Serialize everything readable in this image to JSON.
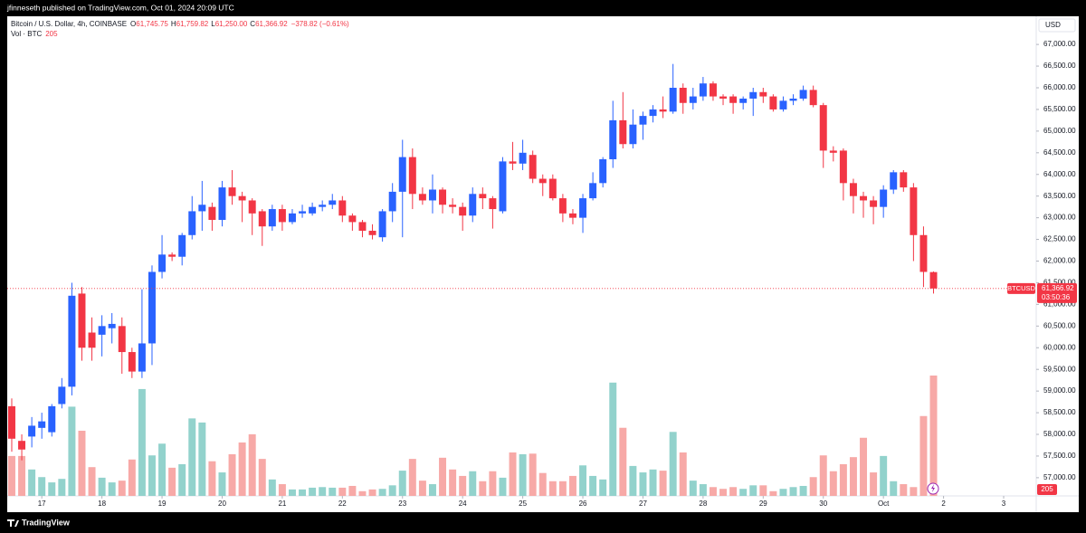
{
  "header": {
    "publisher": "jfinneseth published on TradingView.com, Oct 01, 2024 20:09 UTC"
  },
  "footer": {
    "brand": "TradingView"
  },
  "chart_data": {
    "type": "candlestick",
    "title": "Bitcoin / U.S. Dollar, 4h, COINBASE",
    "ohlc_legend": [
      {
        "label": "O",
        "value": "61,745.75"
      },
      {
        "label": "H",
        "value": "61,759.82"
      },
      {
        "label": "L",
        "value": "61,250.00"
      },
      {
        "label": "C",
        "value": "61,366.92"
      }
    ],
    "change": "−378.82 (−0.61%)",
    "volume_legend": {
      "label": "Vol · BTC",
      "value": "205"
    },
    "currency": "USD",
    "symbol": "BTCUSD",
    "last_price_label": "61,366.92",
    "countdown": "03:50:36",
    "up_color": "#2962ff",
    "down_color": "#f23645",
    "volume_up_color": "#92d2cc",
    "volume_down_color": "#f7a9a7",
    "open": [
      58650,
      57850,
      57950,
      58150,
      58050,
      58700,
      59100,
      61250,
      60350,
      60300,
      60450,
      60500,
      59900,
      59450,
      60100,
      61750,
      62150,
      62100,
      62600,
      63150,
      63250,
      62950,
      63700,
      63500,
      63400,
      63150,
      62800,
      63200,
      62900,
      63100,
      63100,
      63250,
      63300,
      63400,
      63050,
      62900,
      62700,
      62550,
      63150,
      63600,
      64400,
      63550,
      63400,
      63650,
      63300,
      63250,
      63050,
      63550,
      63450,
      63150,
      64300,
      64250,
      64450,
      63900,
      63900,
      63450,
      63100,
      63000,
      63450,
      63800,
      64350,
      65250,
      64700,
      65150,
      65350,
      65500,
      65450,
      66000,
      65650,
      65800,
      66100,
      65800,
      65800,
      65650,
      65750,
      65900,
      65800,
      65500,
      65700,
      65750,
      65950,
      65600,
      64550,
      64550,
      63800,
      63500,
      63400,
      63250,
      63650,
      64050,
      63700,
      62600,
      61745.75
    ],
    "high": [
      58830,
      58000,
      58400,
      58500,
      58700,
      59300,
      61500,
      61400,
      60700,
      60750,
      60800,
      60700,
      60000,
      61350,
      61900,
      62600,
      62200,
      62650,
      63500,
      63850,
      63350,
      63850,
      64100,
      63600,
      63450,
      63200,
      63300,
      63300,
      63200,
      63300,
      63350,
      63400,
      63550,
      63500,
      63100,
      62950,
      62850,
      63200,
      63800,
      64800,
      64600,
      63700,
      64000,
      63700,
      63450,
      63350,
      63700,
      63700,
      63500,
      64400,
      64750,
      64800,
      64550,
      64000,
      64000,
      63550,
      63200,
      63550,
      64050,
      64400,
      65700,
      65900,
      65500,
      65450,
      65600,
      65800,
      66550,
      66100,
      66000,
      66250,
      66150,
      65850,
      65850,
      65800,
      66000,
      66000,
      65850,
      65800,
      65850,
      66050,
      66050,
      65650,
      64650,
      64600,
      63900,
      63600,
      63500,
      63750,
      64100,
      64100,
      63800,
      62800,
      61759.82
    ],
    "low": [
      57600,
      57400,
      57700,
      57900,
      57950,
      58600,
      58900,
      59700,
      59700,
      59800,
      60100,
      59400,
      59300,
      59300,
      59600,
      61600,
      62000,
      61900,
      62500,
      62700,
      62700,
      62800,
      63300,
      62900,
      62600,
      62350,
      62700,
      62700,
      62850,
      63000,
      63050,
      63150,
      63200,
      62900,
      62700,
      62550,
      62500,
      62450,
      62900,
      62550,
      63200,
      63300,
      63100,
      63100,
      63100,
      62700,
      62900,
      63200,
      62750,
      63100,
      64100,
      64100,
      63800,
      63500,
      63400,
      62900,
      62850,
      62650,
      63400,
      63700,
      64150,
      64600,
      64600,
      64800,
      65200,
      65300,
      65400,
      65400,
      65500,
      65700,
      65700,
      65600,
      65400,
      65500,
      65350,
      65650,
      65450,
      65450,
      65600,
      65700,
      65550,
      64150,
      64300,
      63400,
      63100,
      63000,
      62850,
      63000,
      63550,
      63600,
      62000,
      61400,
      61250
    ],
    "close": [
      57900,
      57650,
      58200,
      58300,
      58650,
      59100,
      61200,
      60000,
      60000,
      60500,
      60550,
      59900,
      59450,
      60100,
      61750,
      62150,
      62100,
      62600,
      63150,
      63300,
      62950,
      63700,
      63500,
      63400,
      63100,
      62800,
      63200,
      62900,
      63100,
      63150,
      63250,
      63300,
      63400,
      63050,
      62900,
      62700,
      62600,
      63150,
      63600,
      64400,
      63550,
      63400,
      63650,
      63300,
      63250,
      63050,
      63550,
      63450,
      63200,
      64300,
      64250,
      64500,
      63900,
      63800,
      63450,
      63100,
      63000,
      63450,
      63800,
      64350,
      65250,
      64700,
      65150,
      65350,
      65500,
      65450,
      66000,
      65650,
      65800,
      66100,
      65800,
      65750,
      65650,
      65750,
      65900,
      65800,
      65500,
      65700,
      65750,
      65950,
      65600,
      64550,
      64500,
      63800,
      63500,
      63400,
      63250,
      63650,
      64050,
      63700,
      62600,
      61750,
      61366.92
    ],
    "volume": [
      68,
      68,
      45,
      32,
      23,
      29,
      152,
      111,
      49,
      31,
      23,
      26,
      62,
      182,
      69,
      89,
      48,
      54,
      132,
      125,
      59,
      40,
      71,
      91,
      105,
      63,
      28,
      20,
      11,
      11,
      14,
      15,
      14,
      14,
      17,
      8,
      11,
      12,
      18,
      43,
      63,
      26,
      20,
      65,
      45,
      34,
      42,
      25,
      42,
      31,
      74,
      71,
      72,
      39,
      25,
      25,
      34,
      52,
      34,
      28,
      193,
      116,
      51,
      40,
      45,
      43,
      109,
      74,
      26,
      20,
      15,
      12,
      15,
      12,
      18,
      18,
      8,
      12,
      15,
      17,
      32,
      69,
      42,
      54,
      66,
      99,
      40,
      68,
      25,
      20,
      15,
      136,
      205
    ],
    "xlim": [
      -0.45,
      102.25
    ],
    "xticks": [
      {
        "value": 3,
        "label": "17"
      },
      {
        "value": 9,
        "label": "18"
      },
      {
        "value": 15,
        "label": "19"
      },
      {
        "value": 21,
        "label": "20"
      },
      {
        "value": 27,
        "label": "21"
      },
      {
        "value": 33,
        "label": "22"
      },
      {
        "value": 39,
        "label": "23"
      },
      {
        "value": 45,
        "label": "24"
      },
      {
        "value": 51,
        "label": "25"
      },
      {
        "value": 57,
        "label": "26"
      },
      {
        "value": 63,
        "label": "27"
      },
      {
        "value": 69,
        "label": "28"
      },
      {
        "value": 75,
        "label": "29"
      },
      {
        "value": 81,
        "label": "30"
      },
      {
        "value": 87,
        "label": "Oct"
      },
      {
        "value": 93,
        "label": "2"
      },
      {
        "value": 99,
        "label": "3"
      }
    ],
    "ylim": [
      56580,
      67650
    ],
    "yticks": [
      {
        "value": 57000,
        "label": "57,000.00"
      },
      {
        "value": 57500,
        "label": "57,500.00"
      },
      {
        "value": 58000,
        "label": "58,000.00"
      },
      {
        "value": 58500,
        "label": "58,500.00"
      },
      {
        "value": 59000,
        "label": "59,000.00"
      },
      {
        "value": 59500,
        "label": "59,500.00"
      },
      {
        "value": 60000,
        "label": "60,000.00"
      },
      {
        "value": 60500,
        "label": "60,500.00"
      },
      {
        "value": 61000,
        "label": "61,000.00"
      },
      {
        "value": 61500,
        "label": "61,500.00"
      },
      {
        "value": 62000,
        "label": "62,000.00"
      },
      {
        "value": 62500,
        "label": "62,500.00"
      },
      {
        "value": 63000,
        "label": "63,000.00"
      },
      {
        "value": 63500,
        "label": "63,500.00"
      },
      {
        "value": 64000,
        "label": "64,000.00"
      },
      {
        "value": 64500,
        "label": "64,500.00"
      },
      {
        "value": 65000,
        "label": "65,000.00"
      },
      {
        "value": 65500,
        "label": "65,500.00"
      },
      {
        "value": 66000,
        "label": "66,000.00"
      },
      {
        "value": 66500,
        "label": "66,500.00"
      },
      {
        "value": 67000,
        "label": "67,000.00"
      }
    ],
    "grid": false
  }
}
